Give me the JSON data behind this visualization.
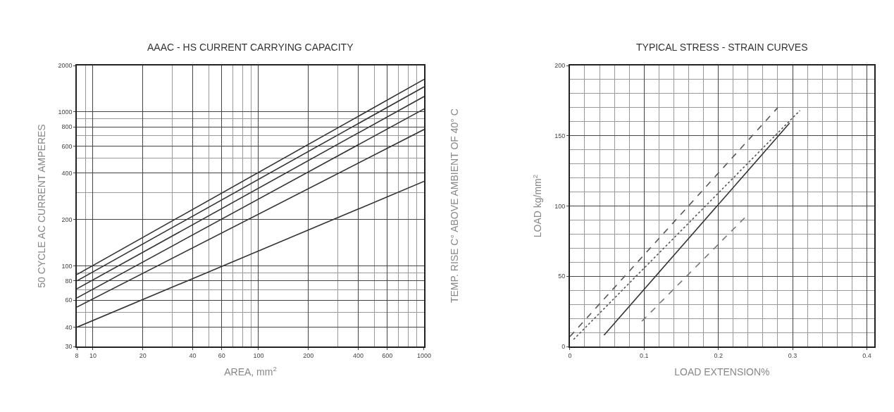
{
  "chart_data": [
    {
      "type": "line",
      "title": "AAAC - HS CURRENT CARRYING CAPACITY",
      "xlabel": "AREA, mm$^{2}$",
      "ylabel": "50 CYCLE AC CURRENT AMPERES",
      "y2label": "TEMP. RISE C° ABOVE AMBIENT OF 40° C",
      "log": "xy",
      "grid": true,
      "xlim": [
        8,
        1000
      ],
      "ylim": [
        30,
        2000
      ],
      "xticks": [
        8,
        10,
        20,
        40,
        60,
        100,
        200,
        400,
        600,
        1000
      ],
      "yticks": [
        30,
        40,
        60,
        80,
        100,
        200,
        400,
        600,
        800,
        1000,
        2000
      ],
      "x": [
        8,
        1000
      ],
      "series": [
        {
          "color": "#333333",
          "values": [
            88,
            1626
          ]
        },
        {
          "color": "#333333",
          "values": [
            80,
            1455
          ]
        },
        {
          "color": "#333333",
          "values": [
            71,
            1259
          ]
        },
        {
          "color": "#333333",
          "values": [
            62,
            1045
          ]
        },
        {
          "color": "#333333",
          "values": [
            54,
            769
          ]
        },
        {
          "color": "#333333",
          "values": [
            40,
            354
          ]
        }
      ]
    },
    {
      "type": "line",
      "title": "TYPICAL STRESS - STRAIN CURVES",
      "xlabel": "LOAD EXTENSION%",
      "ylabel": "LOAD kg/mm$^{2}$",
      "grid": true,
      "xlim": [
        0,
        0.41
      ],
      "ylim": [
        0,
        200
      ],
      "xticks": [
        0,
        0.1,
        0.2,
        0.3,
        0.4
      ],
      "yticks": [
        0,
        50,
        100,
        150,
        200
      ],
      "series": [
        {
          "color": "#555555",
          "line_style": "dashed",
          "x": [
            0,
            0.28
          ],
          "values": [
            7,
            170
          ]
        },
        {
          "color": "#555555",
          "line_style": "dotted",
          "x": [
            0.005,
            0.31
          ],
          "values": [
            5,
            168
          ]
        },
        {
          "color": "#333333",
          "line_style": "solid",
          "x": [
            0.046,
            0.296
          ],
          "values": [
            8,
            159
          ]
        },
        {
          "color": "#777777",
          "line_style": "dashed",
          "x": [
            0.097,
            0.24
          ],
          "values": [
            18,
            94
          ]
        }
      ]
    }
  ]
}
